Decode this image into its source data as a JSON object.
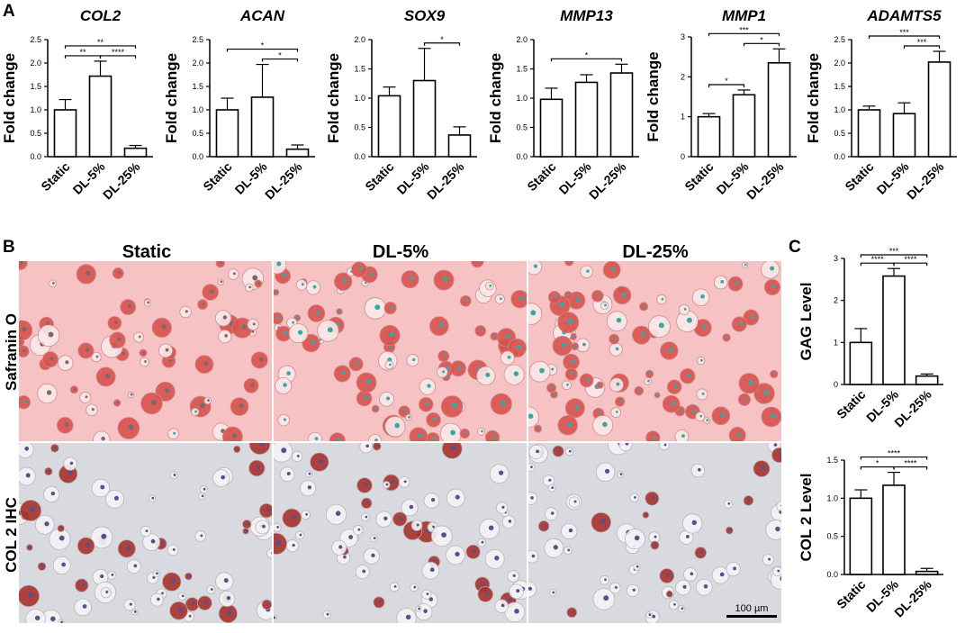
{
  "panels": {
    "a": "A",
    "b": "B",
    "c": "C"
  },
  "histology": {
    "columns": [
      "Static",
      "DL-5%",
      "DL-25%"
    ],
    "rows": [
      "Safranin O",
      "COL 2 IHC"
    ],
    "scale_bar": "100 µm",
    "colors": {
      "safranin_bg": "#f6c2c4",
      "safranin_cell": "#d9534f",
      "green_nuclei": "#3aa7a0",
      "ihc_bg": "#d9d9e0",
      "ihc_cell": "#a8322c",
      "ihc_nuclei": "#5a4f8a"
    }
  },
  "chart_data": [
    {
      "type": "bar",
      "title": "COL2",
      "ylabel": "Fold change",
      "categories": [
        "Static",
        "DL-5%",
        "DL-25%"
      ],
      "values": [
        1.0,
        1.72,
        0.18
      ],
      "errors": [
        0.22,
        0.32,
        0.06
      ],
      "ylim": [
        0,
        2.5
      ],
      "yticks": [
        "0.0",
        "0.5",
        "1.0",
        "1.5",
        "2.0",
        "2.5"
      ],
      "significance": [
        {
          "from": 0,
          "to": 1,
          "label": "**"
        },
        {
          "from": 0,
          "to": 2,
          "label": "**"
        },
        {
          "from": 1,
          "to": 2,
          "label": "****"
        }
      ]
    },
    {
      "type": "bar",
      "title": "ACAN",
      "ylabel": "Fold change",
      "categories": [
        "Static",
        "DL-5%",
        "DL-25%"
      ],
      "values": [
        1.0,
        1.27,
        0.16
      ],
      "errors": [
        0.25,
        0.7,
        0.09
      ],
      "ylim": [
        0,
        2.5
      ],
      "yticks": [
        "0.0",
        "0.5",
        "1.0",
        "1.5",
        "2.0",
        "2.5"
      ],
      "significance": [
        {
          "from": 0,
          "to": 2,
          "label": "*"
        },
        {
          "from": 1,
          "to": 2,
          "label": "*"
        }
      ]
    },
    {
      "type": "bar",
      "title": "SOX9",
      "ylabel": "Fold change",
      "categories": [
        "Static",
        "DL-5%",
        "DL-25%"
      ],
      "values": [
        1.04,
        1.3,
        0.37
      ],
      "errors": [
        0.15,
        0.55,
        0.14
      ],
      "ylim": [
        0,
        2.0
      ],
      "yticks": [
        "0.0",
        "0.5",
        "1.0",
        "1.5",
        "2.0"
      ],
      "significance": [
        {
          "from": 1,
          "to": 2,
          "label": "*"
        }
      ]
    },
    {
      "type": "bar",
      "title": "MMP13",
      "ylabel": "Fold change",
      "categories": [
        "Static",
        "DL-5%",
        "DL-25%"
      ],
      "values": [
        0.98,
        1.27,
        1.43
      ],
      "errors": [
        0.19,
        0.13,
        0.15
      ],
      "ylim": [
        0,
        2.0
      ],
      "yticks": [
        "0.0",
        "0.5",
        "1.0",
        "1.5",
        "2.0"
      ],
      "significance": [
        {
          "from": 0,
          "to": 2,
          "label": "*"
        }
      ]
    },
    {
      "type": "bar",
      "title": "MMP1",
      "ylabel": "Fold change",
      "categories": [
        "Static",
        "DL-5%",
        "DL-25%"
      ],
      "values": [
        1.0,
        1.55,
        2.35
      ],
      "errors": [
        0.08,
        0.12,
        0.35
      ],
      "ylim": [
        0,
        3
      ],
      "yticks": [
        "0",
        "1",
        "2",
        "3"
      ],
      "significance": [
        {
          "from": 0,
          "to": 1,
          "label": "*"
        },
        {
          "from": 0,
          "to": 2,
          "label": "***"
        },
        {
          "from": 1,
          "to": 2,
          "label": "*"
        }
      ]
    },
    {
      "type": "bar",
      "title": "ADAMTS5",
      "ylabel": "Fold change",
      "categories": [
        "Static",
        "DL-5%",
        "DL-25%"
      ],
      "values": [
        1.0,
        0.92,
        2.02
      ],
      "errors": [
        0.08,
        0.23,
        0.23
      ],
      "ylim": [
        0,
        2.5
      ],
      "yticks": [
        "0.0",
        "0.5",
        "1.0",
        "1.5",
        "2.0",
        "2.5"
      ],
      "significance": [
        {
          "from": 0,
          "to": 2,
          "label": "***"
        },
        {
          "from": 1,
          "to": 2,
          "label": "***"
        }
      ]
    },
    {
      "type": "bar",
      "title": "",
      "ylabel": "GAG Level",
      "categories": [
        "Static",
        "DL-5%",
        "DL-25%"
      ],
      "values": [
        1.0,
        2.58,
        0.2
      ],
      "errors": [
        0.33,
        0.18,
        0.05
      ],
      "ylim": [
        0,
        3
      ],
      "yticks": [
        "0",
        "1",
        "2",
        "3"
      ],
      "significance": [
        {
          "from": 0,
          "to": 1,
          "label": "****"
        },
        {
          "from": 0,
          "to": 2,
          "label": "***"
        },
        {
          "from": 1,
          "to": 2,
          "label": "****"
        }
      ]
    },
    {
      "type": "bar",
      "title": "",
      "ylabel": "COL 2 Level",
      "categories": [
        "Static",
        "DL-5%",
        "DL-25%"
      ],
      "values": [
        1.0,
        1.17,
        0.04
      ],
      "errors": [
        0.11,
        0.17,
        0.04
      ],
      "ylim": [
        0,
        1.5
      ],
      "yticks": [
        "0.0",
        "0.5",
        "1.0",
        "1.5"
      ],
      "significance": [
        {
          "from": 0,
          "to": 1,
          "label": "*"
        },
        {
          "from": 0,
          "to": 2,
          "label": "****"
        },
        {
          "from": 1,
          "to": 2,
          "label": "****"
        }
      ]
    }
  ]
}
